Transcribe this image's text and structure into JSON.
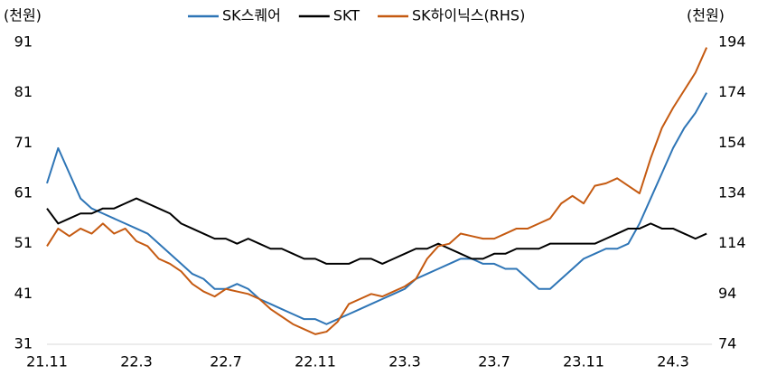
{
  "chart_data": {
    "type": "line",
    "y_unit": "(천원)",
    "y2_unit": "(천원)",
    "categories": [
      "21.11",
      null,
      null,
      null,
      null,
      null,
      null,
      null,
      "22.3",
      null,
      null,
      null,
      null,
      null,
      null,
      null,
      "22.7",
      null,
      null,
      null,
      null,
      null,
      null,
      null,
      "22.11",
      null,
      null,
      null,
      null,
      null,
      null,
      null,
      "23.3",
      null,
      null,
      null,
      null,
      null,
      null,
      null,
      "23.7",
      null,
      null,
      null,
      null,
      null,
      null,
      null,
      "23.11",
      null,
      null,
      null,
      null,
      null,
      null,
      null,
      "24.3",
      null,
      null,
      null
    ],
    "ylim": [
      31,
      91
    ],
    "yticks": [
      31,
      41,
      51,
      61,
      71,
      81,
      91
    ],
    "y2lim": [
      74,
      194
    ],
    "y2ticks": [
      74,
      94,
      114,
      134,
      154,
      174,
      194
    ],
    "legend": "top",
    "series": [
      {
        "name": "SK스퀘어",
        "color": "#2e75b6",
        "values": [
          63,
          70,
          65,
          60,
          58,
          57,
          56,
          55,
          54,
          53,
          51,
          49,
          47,
          45,
          44,
          42,
          42,
          43,
          42,
          40,
          39,
          38,
          37,
          36,
          36,
          35,
          36,
          37,
          38,
          39,
          40,
          41,
          42,
          44,
          45,
          46,
          47,
          48,
          48,
          47,
          47,
          46,
          46,
          44,
          42,
          42,
          44,
          46,
          48,
          49,
          50,
          50,
          51,
          55,
          60,
          65,
          70,
          74,
          77,
          81
        ]
      },
      {
        "name": "SKT",
        "color": "#000000",
        "values": [
          58,
          55,
          56,
          57,
          57,
          58,
          58,
          59,
          60,
          59,
          58,
          57,
          55,
          54,
          53,
          52,
          52,
          51,
          52,
          51,
          50,
          50,
          49,
          48,
          48,
          47,
          47,
          47,
          48,
          48,
          47,
          48,
          49,
          50,
          50,
          51,
          50,
          49,
          48,
          48,
          49,
          49,
          50,
          50,
          50,
          51,
          51,
          51,
          51,
          51,
          52,
          53,
          54,
          54,
          55,
          54,
          54,
          53,
          52,
          53
        ]
      },
      {
        "name": "SK하이닉스(RHS)",
        "color": "#c55a11",
        "axis": "y2",
        "values": [
          113,
          120,
          117,
          120,
          118,
          122,
          118,
          120,
          115,
          113,
          108,
          106,
          103,
          98,
          95,
          93,
          96,
          95,
          94,
          92,
          88,
          85,
          82,
          80,
          78,
          79,
          83,
          90,
          92,
          94,
          93,
          95,
          97,
          100,
          108,
          113,
          114,
          118,
          117,
          116,
          116,
          118,
          120,
          120,
          122,
          124,
          130,
          133,
          130,
          137,
          138,
          140,
          137,
          134,
          148,
          160,
          168,
          175,
          182,
          192
        ]
      }
    ]
  }
}
